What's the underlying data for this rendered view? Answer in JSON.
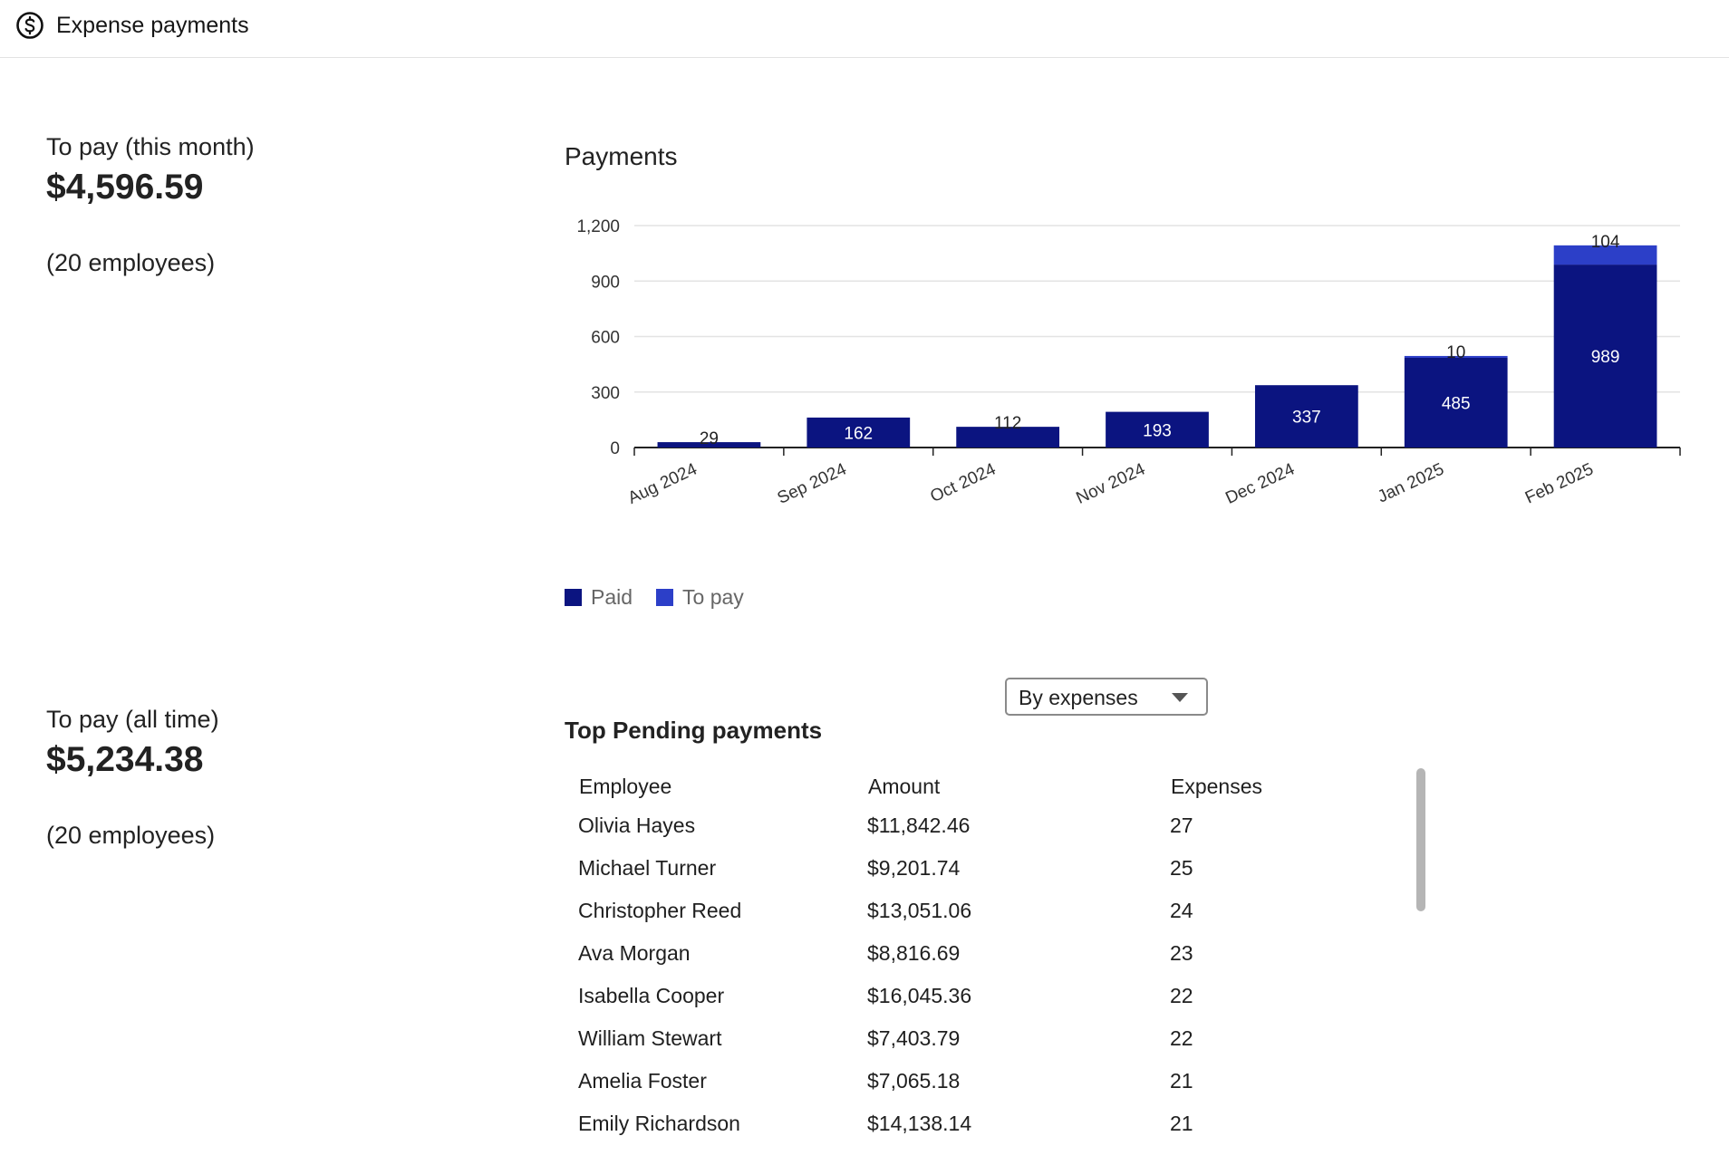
{
  "header": {
    "title": "Expense payments",
    "icon": "dollar-circle-icon"
  },
  "stats": {
    "month": {
      "label": "To pay (this month)",
      "value": "$4,596.59",
      "sub": "(20 employees)"
    },
    "all_time": {
      "label": "To pay (all time)",
      "value": "$5,234.38",
      "sub": "(20 employees)"
    }
  },
  "chart": {
    "title": "Payments"
  },
  "chart_data": {
    "type": "bar",
    "stacked": true,
    "title": "Payments",
    "categories": [
      "Aug 2024",
      "Sep 2024",
      "Oct 2024",
      "Nov 2024",
      "Dec 2024",
      "Jan 2025",
      "Feb 2025"
    ],
    "series": [
      {
        "name": "Paid",
        "color": "#0b1480",
        "values": [
          29,
          162,
          112,
          193,
          337,
          485,
          989
        ]
      },
      {
        "name": "To pay",
        "color": "#2c3fc8",
        "values": [
          0,
          0,
          0,
          0,
          0,
          10,
          104
        ]
      }
    ],
    "data_labels": [
      {
        "category": "Aug 2024",
        "series": "Paid",
        "text": "29"
      },
      {
        "category": "Sep 2024",
        "series": "Paid",
        "text": "162"
      },
      {
        "category": "Oct 2024",
        "series": "Paid",
        "text": "112"
      },
      {
        "category": "Nov 2024",
        "series": "Paid",
        "text": "193"
      },
      {
        "category": "Dec 2024",
        "series": "Paid",
        "text": "337"
      },
      {
        "category": "Jan 2025",
        "series": "Paid",
        "text": "485"
      },
      {
        "category": "Jan 2025",
        "series": "To pay",
        "text": "10"
      },
      {
        "category": "Feb 2025",
        "series": "Paid",
        "text": "989"
      },
      {
        "category": "Feb 2025",
        "series": "To pay",
        "text": "104"
      }
    ],
    "yticks": [
      "0",
      "300",
      "600",
      "900",
      "1,200"
    ],
    "ylim": [
      0,
      1200
    ],
    "grid": true,
    "legend": "bottom-left"
  },
  "pending": {
    "title": "Top Pending payments",
    "sort_select": {
      "value": "By expenses"
    },
    "columns": [
      "Employee",
      "Amount",
      "Expenses"
    ],
    "rows": [
      [
        "Olivia Hayes",
        "$11,842.46",
        "27"
      ],
      [
        "Michael Turner",
        "$9,201.74",
        "25"
      ],
      [
        "Christopher Reed",
        "$13,051.06",
        "24"
      ],
      [
        "Ava Morgan",
        "$8,816.69",
        "23"
      ],
      [
        "Isabella Cooper",
        "$16,045.36",
        "22"
      ],
      [
        "William Stewart",
        "$7,403.79",
        "22"
      ],
      [
        "Amelia Foster",
        "$7,065.18",
        "21"
      ],
      [
        "Emily Richardson",
        "$14,138.14",
        "21"
      ]
    ]
  }
}
